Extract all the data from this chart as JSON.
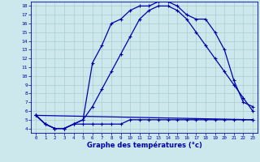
{
  "xlabel": "Graphe des températures (°c)",
  "background_color": "#cce8ec",
  "grid_color": "#aacccc",
  "line_color": "#0000aa",
  "xlim": [
    -0.5,
    23.5
  ],
  "ylim": [
    3.5,
    18.5
  ],
  "xticks": [
    0,
    1,
    2,
    3,
    4,
    5,
    6,
    7,
    8,
    9,
    10,
    11,
    12,
    13,
    14,
    15,
    16,
    17,
    18,
    19,
    20,
    21,
    22,
    23
  ],
  "yticks": [
    4,
    5,
    6,
    7,
    8,
    9,
    10,
    11,
    12,
    13,
    14,
    15,
    16,
    17,
    18
  ],
  "curve1_x": [
    0,
    1,
    2,
    3,
    4,
    5,
    6,
    7,
    8,
    9,
    10,
    11,
    12,
    13,
    14,
    15,
    16,
    17,
    18,
    19,
    20,
    21,
    22,
    23
  ],
  "curve1_y": [
    5.5,
    4.5,
    4.0,
    4.0,
    4.5,
    5.0,
    11.5,
    13.5,
    16.0,
    16.5,
    17.5,
    18.0,
    18.0,
    18.5,
    18.5,
    18.0,
    17.0,
    16.5,
    16.5,
    15.0,
    13.0,
    9.5,
    7.0,
    6.5
  ],
  "curve2_x": [
    0,
    1,
    2,
    3,
    4,
    5,
    6,
    7,
    8,
    9,
    10,
    11,
    12,
    13,
    14,
    15,
    16,
    17,
    18,
    19,
    20,
    21,
    22,
    23
  ],
  "curve2_y": [
    5.5,
    4.5,
    4.0,
    4.0,
    4.5,
    5.0,
    6.5,
    8.5,
    10.5,
    12.5,
    14.5,
    16.5,
    17.5,
    18.0,
    18.0,
    17.5,
    16.5,
    15.0,
    13.5,
    12.0,
    10.5,
    9.0,
    7.5,
    6.0
  ],
  "curve3_x": [
    0,
    1,
    2,
    3,
    4,
    5,
    6,
    7,
    8,
    9,
    10,
    11,
    12,
    13,
    14,
    15,
    16,
    17,
    18,
    19,
    20,
    21,
    22,
    23
  ],
  "curve3_y": [
    5.5,
    4.5,
    4.0,
    4.0,
    4.5,
    4.5,
    4.5,
    4.5,
    4.5,
    4.5,
    5.0,
    5.0,
    5.0,
    5.0,
    5.0,
    5.0,
    5.0,
    5.0,
    5.0,
    5.0,
    5.0,
    5.0,
    5.0,
    5.0
  ],
  "line_x": [
    0,
    23
  ],
  "line_y": [
    5.5,
    5.0
  ]
}
